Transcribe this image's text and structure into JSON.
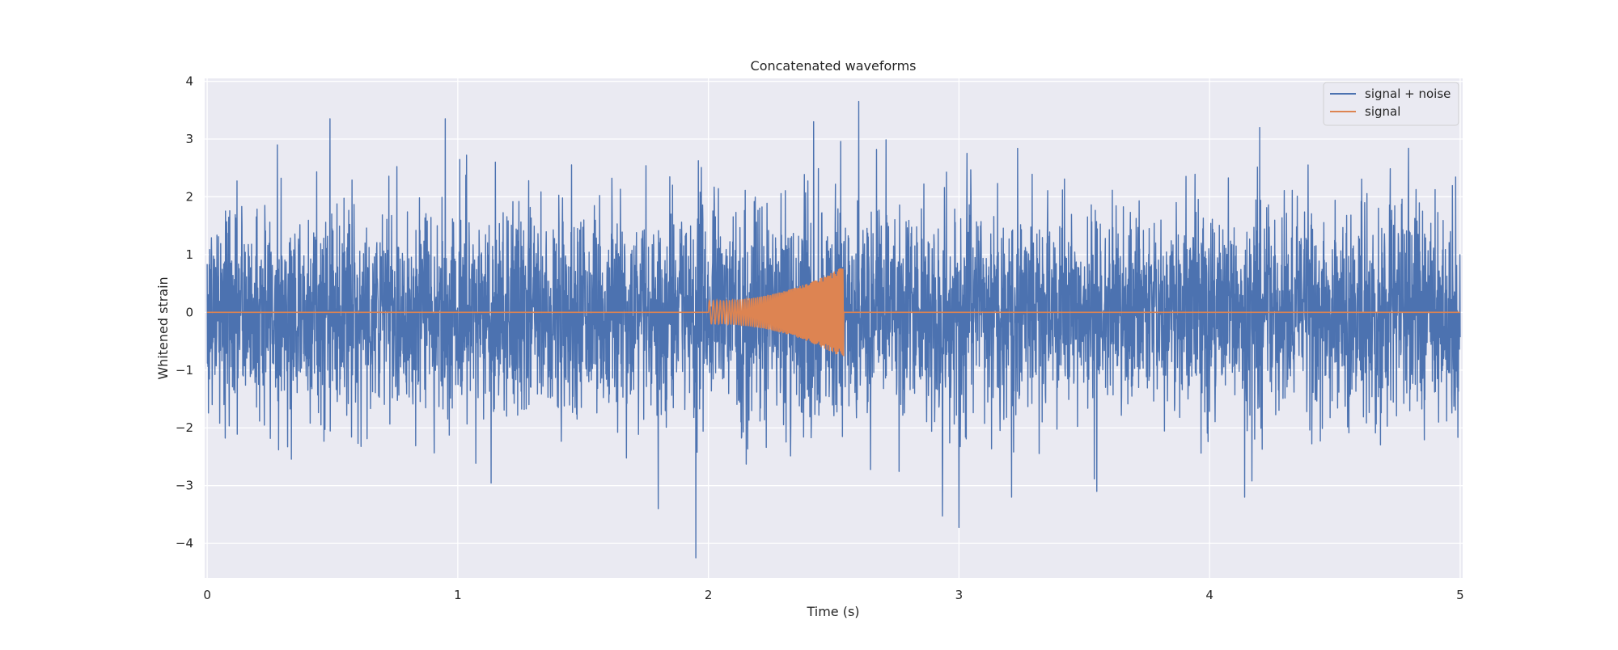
{
  "chart_data": {
    "type": "line",
    "title": "Concatenated waveforms",
    "xlabel": "Time (s)",
    "ylabel": "Whitened strain",
    "xlim": [
      -0.01,
      5.01
    ],
    "ylim": [
      -4.6,
      4.05
    ],
    "x_ticks": [
      0,
      1,
      2,
      3,
      4,
      5
    ],
    "y_ticks": [
      -4,
      -3,
      -2,
      -1,
      0,
      1,
      2,
      3,
      4
    ],
    "x_tick_labels": [
      "0",
      "1",
      "2",
      "3",
      "4",
      "5"
    ],
    "y_tick_labels": [
      "−4",
      "−3",
      "−2",
      "−1",
      "0",
      "1",
      "2",
      "3",
      "4"
    ],
    "grid": true,
    "legend_position": "top-right",
    "series": [
      {
        "name": "signal + noise",
        "color": "#4c72b0",
        "description": "white noise, std ~0.9, t = 0 to 5 s",
        "notable_peaks": [
          {
            "x": 0.49,
            "y": 3.35
          },
          {
            "x": 0.95,
            "y": 3.35
          },
          {
            "x": 2.42,
            "y": 3.3
          },
          {
            "x": 2.6,
            "y": 3.65
          },
          {
            "x": 4.2,
            "y": 3.2
          },
          {
            "x": 1.8,
            "y": -3.4
          },
          {
            "x": 1.95,
            "y": -4.25
          },
          {
            "x": 3.21,
            "y": -3.2
          },
          {
            "x": 3.55,
            "y": -3.1
          },
          {
            "x": 4.14,
            "y": -3.2
          }
        ]
      },
      {
        "name": "signal",
        "color": "#dd8452",
        "description": "chirp from t = 2.0 s to 2.54 s, amplitude growing from ~0.2 to ~0.8, zero elsewhere",
        "chirp_start": 2.0,
        "chirp_end": 2.54,
        "amp_start": 0.2,
        "amp_end": 0.8
      }
    ]
  }
}
